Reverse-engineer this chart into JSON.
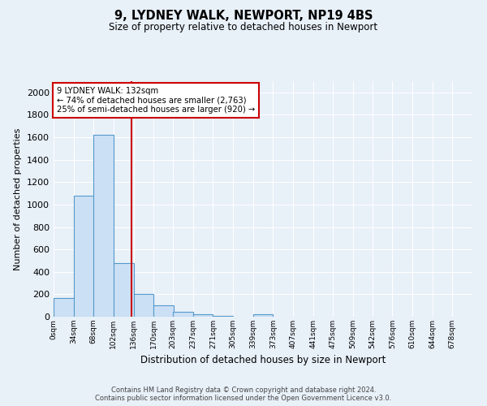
{
  "title1": "9, LYDNEY WALK, NEWPORT, NP19 4BS",
  "title2": "Size of property relative to detached houses in Newport",
  "xlabel": "Distribution of detached houses by size in Newport",
  "ylabel": "Number of detached properties",
  "bin_labels": [
    "0sqm",
    "34sqm",
    "68sqm",
    "102sqm",
    "136sqm",
    "170sqm",
    "203sqm",
    "237sqm",
    "271sqm",
    "305sqm",
    "339sqm",
    "373sqm",
    "407sqm",
    "441sqm",
    "475sqm",
    "509sqm",
    "542sqm",
    "576sqm",
    "610sqm",
    "644sqm",
    "678sqm"
  ],
  "bin_edges": [
    0,
    34,
    68,
    102,
    136,
    170,
    203,
    237,
    271,
    305,
    339,
    373,
    407,
    441,
    475,
    509,
    542,
    576,
    610,
    644,
    678
  ],
  "bar_heights": [
    170,
    1080,
    1620,
    480,
    200,
    100,
    40,
    20,
    10,
    0,
    20,
    0,
    0,
    0,
    0,
    0,
    0,
    0,
    0,
    0
  ],
  "bar_color": "#cce0f5",
  "bar_edge_color": "#5599cc",
  "property_size": 132,
  "vline_color": "#cc0000",
  "annotation_line1": "9 LYDNEY WALK: 132sqm",
  "annotation_line2": "← 74% of detached houses are smaller (2,763)",
  "annotation_line3": "25% of semi-detached houses are larger (920) →",
  "annotation_box_color": "#ffffff",
  "annotation_box_edge": "#cc0000",
  "ylim": [
    0,
    2100
  ],
  "yticks": [
    0,
    200,
    400,
    600,
    800,
    1000,
    1200,
    1400,
    1600,
    1800,
    2000
  ],
  "bg_color": "#e8f0f8",
  "grid_color": "#ffffff",
  "footer1": "Contains HM Land Registry data © Crown copyright and database right 2024.",
  "footer2": "Contains public sector information licensed under the Open Government Licence v3.0."
}
